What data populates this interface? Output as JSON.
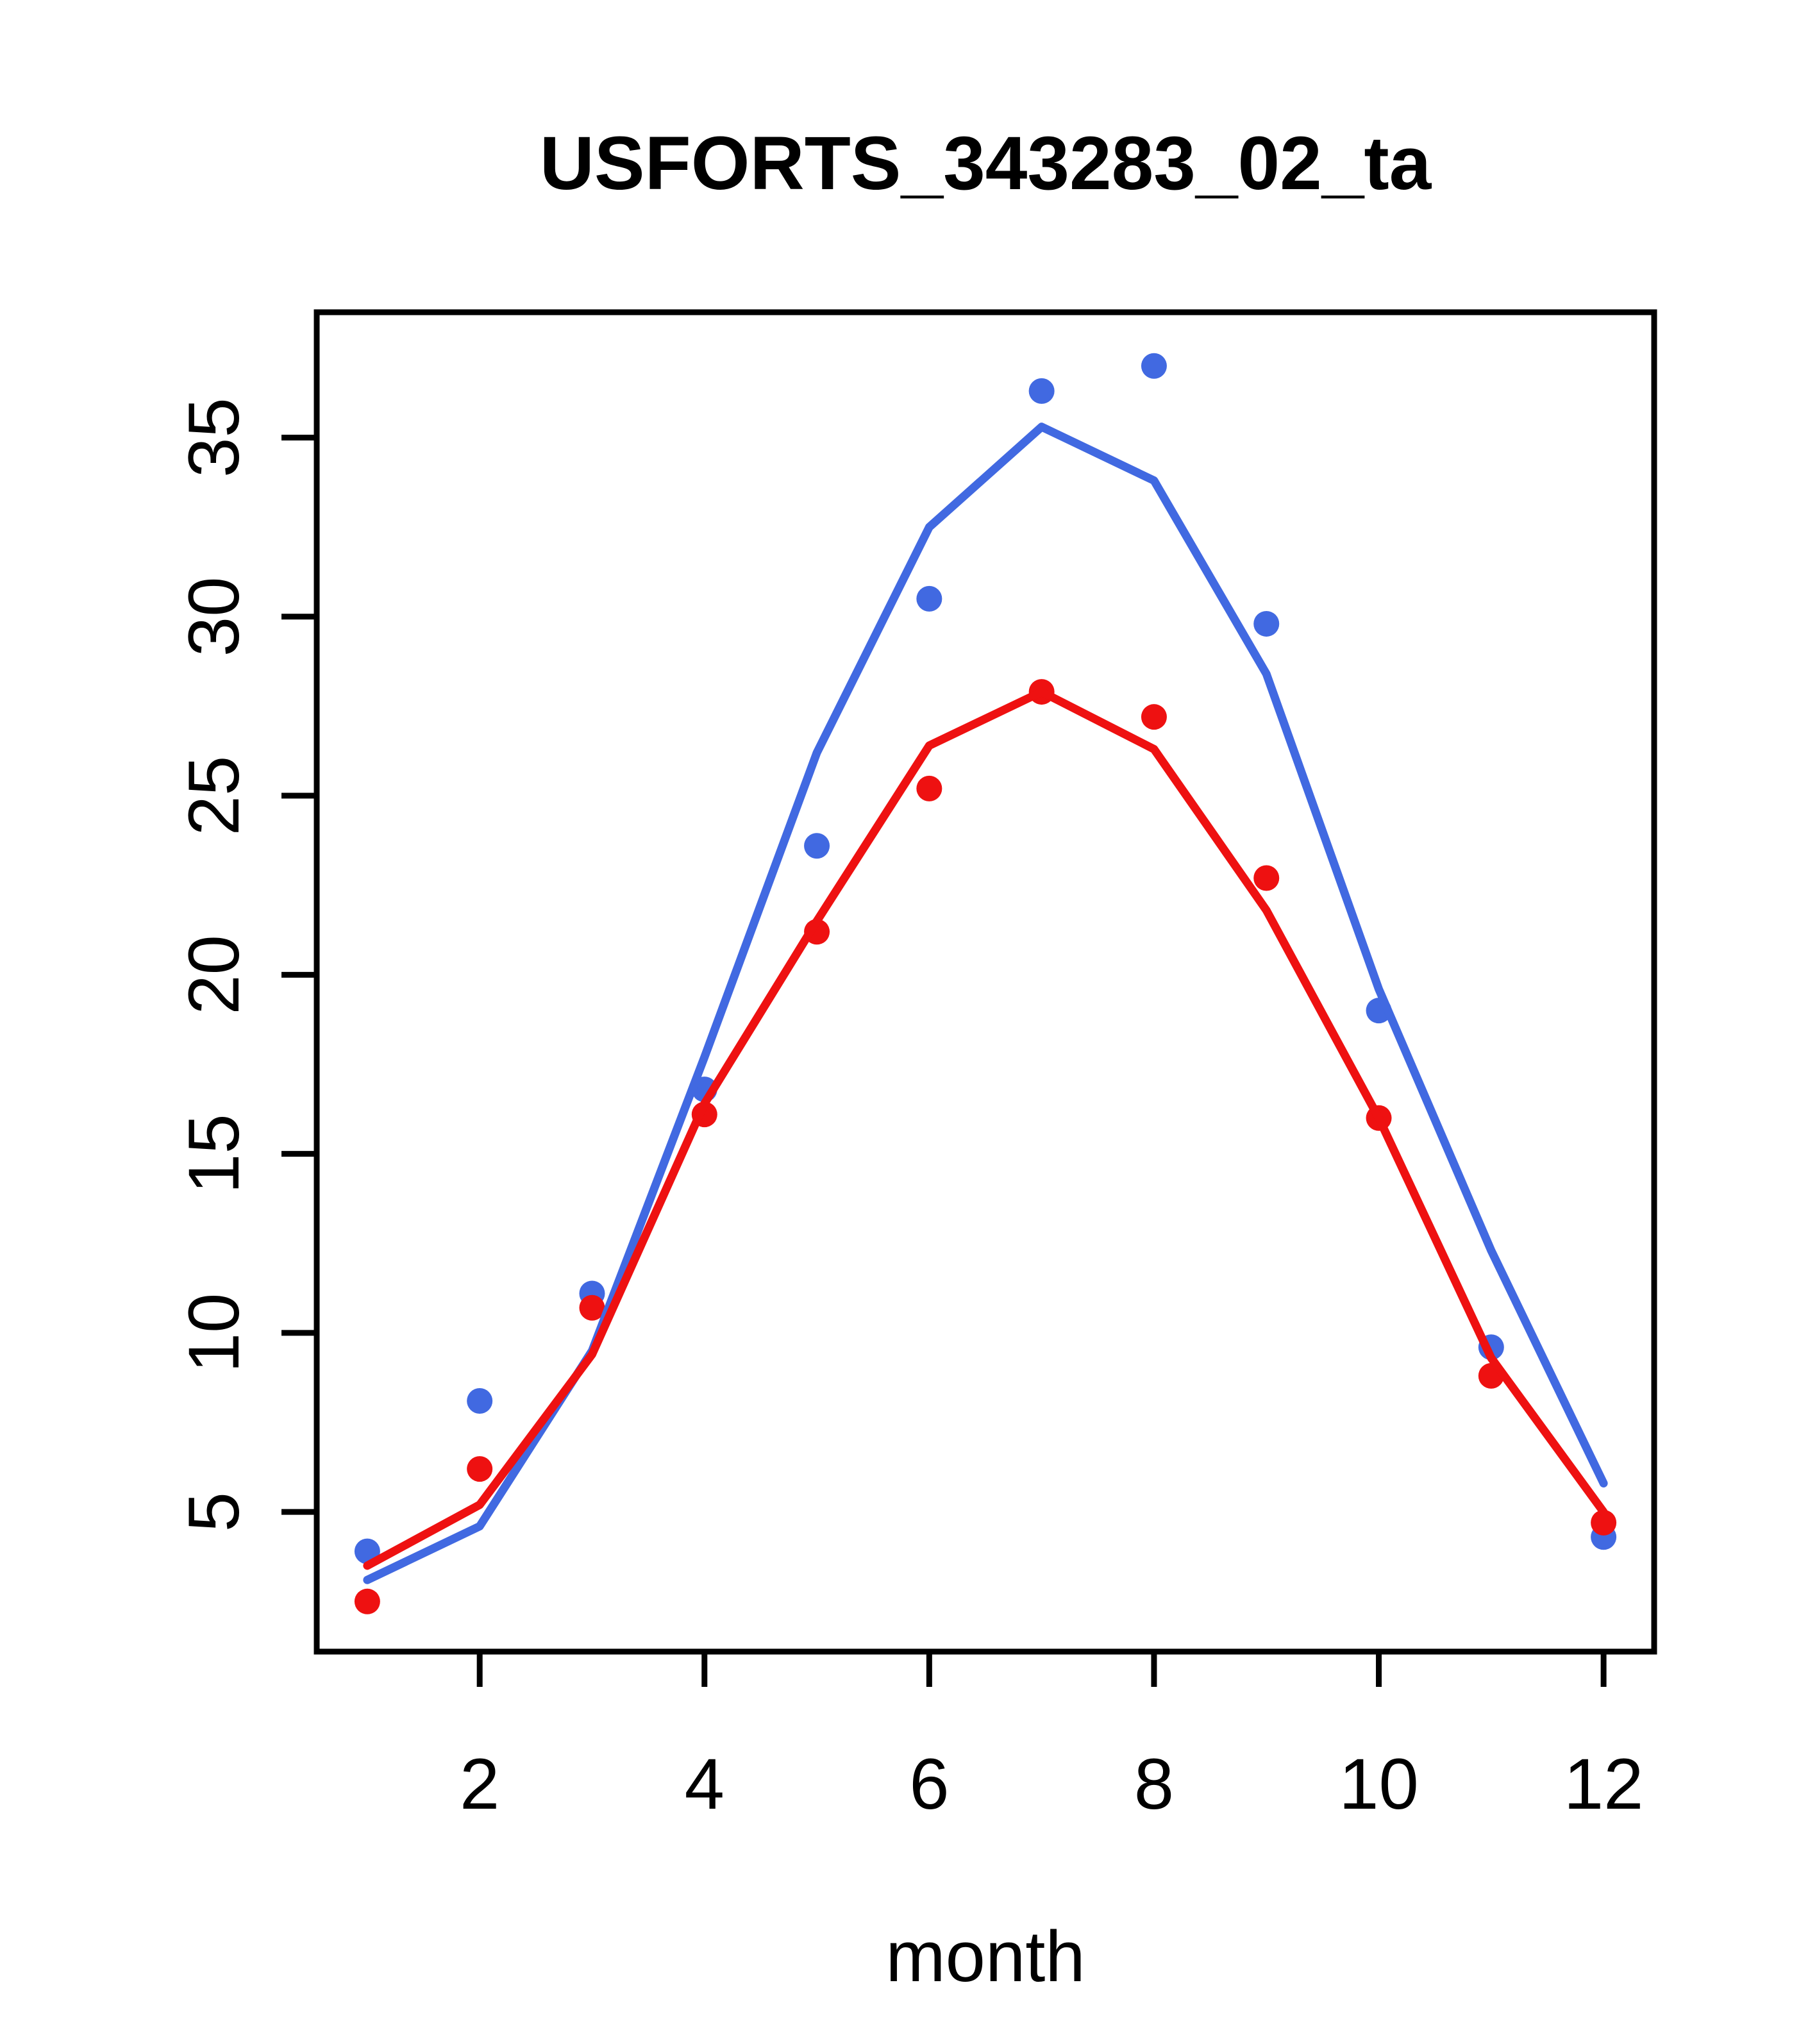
{
  "figure": {
    "background": "#ffffff"
  },
  "chart_data": {
    "type": "scatter",
    "subtype": "scatter-with-fitted-lines",
    "title": "USFORTS_343283_02_ta",
    "xlabel": "month",
    "ylabel": "",
    "x": [
      1,
      2,
      3,
      4,
      5,
      6,
      7,
      8,
      9,
      10,
      11,
      12
    ],
    "x_ticks": [
      2,
      4,
      6,
      8,
      10,
      12
    ],
    "y_ticks": [
      5,
      10,
      15,
      20,
      25,
      30,
      35
    ],
    "xlim": [
      0.55,
      12.45
    ],
    "ylim": [
      1.1,
      38.5
    ],
    "grid": false,
    "legend_position": "none",
    "series": [
      {
        "name": "blue-points",
        "kind": "scatter",
        "color": "#4169e1",
        "values": [
          3.9,
          8.1,
          11.1,
          16.8,
          23.6,
          30.5,
          36.3,
          37.0,
          29.8,
          19.0,
          9.6,
          4.3
        ]
      },
      {
        "name": "red-points",
        "kind": "scatter",
        "color": "#ee1111",
        "values": [
          2.5,
          6.2,
          10.7,
          16.1,
          21.2,
          25.2,
          27.9,
          27.2,
          22.7,
          16.0,
          8.8,
          4.7
        ]
      },
      {
        "name": "blue-line",
        "kind": "line",
        "color": "#4169e1",
        "values": [
          3.1,
          4.6,
          9.5,
          17.7,
          26.2,
          32.5,
          35.3,
          33.8,
          28.4,
          19.6,
          12.3,
          5.8
        ]
      },
      {
        "name": "red-line",
        "kind": "line",
        "color": "#ee1111",
        "values": [
          3.5,
          5.2,
          9.4,
          16.4,
          21.5,
          26.4,
          27.9,
          26.3,
          21.8,
          16.0,
          9.3,
          5.0
        ]
      }
    ]
  },
  "colors": {
    "blue": "#4169e1",
    "red": "#ee1111",
    "axis": "#000000",
    "background": "#ffffff"
  }
}
